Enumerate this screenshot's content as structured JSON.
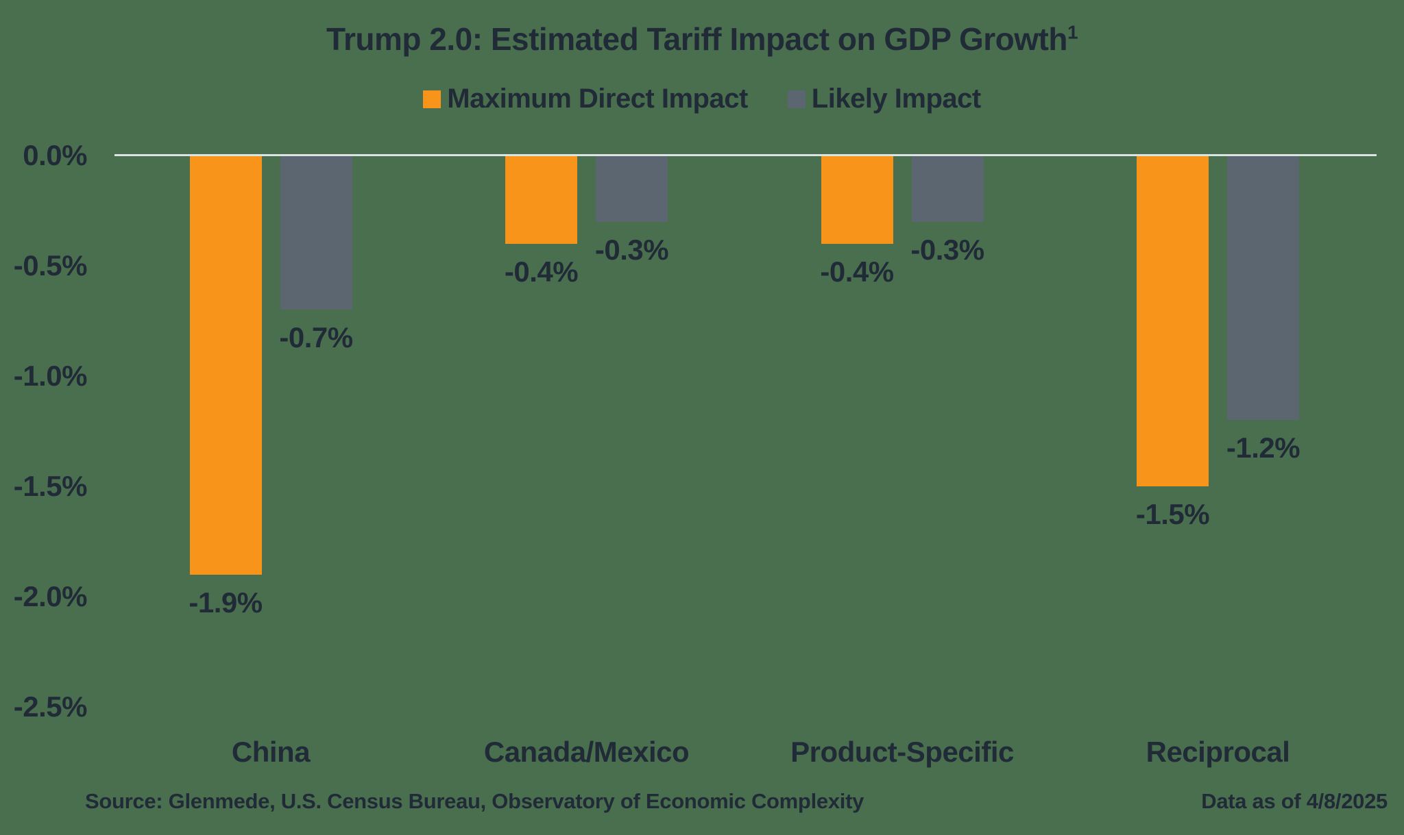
{
  "title": {
    "text": "Trump 2.0: Estimated Tariff Impact on GDP Growth",
    "superscript": "1"
  },
  "colors": {
    "background": "#4A6F4E",
    "text": "#212B38",
    "axis_line": "#DCE3E3",
    "max_direct_impact": "#F9941A",
    "likely_impact": "#5B6670"
  },
  "footer": {
    "source": "Source: Glenmede, U.S. Census Bureau, Observatory of Economic Complexity",
    "date": "Data as of 4/8/2025"
  },
  "chart_data": {
    "type": "bar",
    "title": "Trump 2.0: Estimated Tariff Impact on GDP Growth",
    "categories": [
      "China",
      "Canada/Mexico",
      "Product-Specific",
      "Reciprocal"
    ],
    "series": [
      {
        "name": "Maximum Direct Impact",
        "color": "#F9941A",
        "values": [
          -1.9,
          -0.4,
          -0.4,
          -1.5
        ],
        "data_labels": [
          "-1.9%",
          "-0.4%",
          "-0.4%",
          "-1.5%"
        ]
      },
      {
        "name": "Likely Impact",
        "color": "#5B6670",
        "values": [
          -0.7,
          -0.3,
          -0.3,
          -1.2
        ],
        "data_labels": [
          "-0.7%",
          "-0.3%",
          "-0.3%",
          "-1.2%"
        ]
      }
    ],
    "y_axis": {
      "tick_labels": [
        "0.0%",
        "-0.5%",
        "-1.0%",
        "-1.5%",
        "-2.0%",
        "-2.5%"
      ],
      "max": 0.0,
      "min": -2.5,
      "step": -0.5,
      "unit": "%"
    },
    "xlabel": "",
    "ylabel": "",
    "grid": "zero-baseline-only",
    "legend_position": "top-center",
    "data_label_position": "below-bar-end"
  }
}
